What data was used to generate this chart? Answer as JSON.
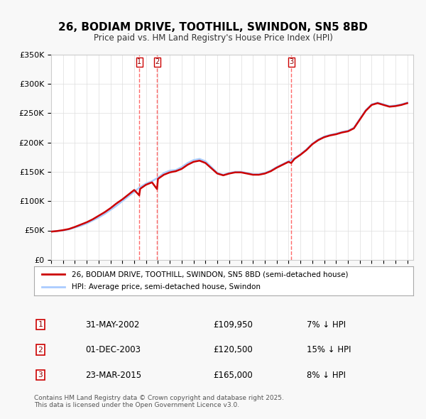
{
  "title": "26, BODIAM DRIVE, TOOTHILL, SWINDON, SN5 8BD",
  "subtitle": "Price paid vs. HM Land Registry's House Price Index (HPI)",
  "legend_line1": "26, BODIAM DRIVE, TOOTHILL, SWINDON, SN5 8BD (semi-detached house)",
  "legend_line2": "HPI: Average price, semi-detached house, Swindon",
  "footer": "Contains HM Land Registry data © Crown copyright and database right 2025.\nThis data is licensed under the Open Government Licence v3.0.",
  "transactions": [
    {
      "num": 1,
      "date": "31-MAY-2002",
      "price": "£109,950",
      "diff": "7% ↓ HPI",
      "year": 2002.42
    },
    {
      "num": 2,
      "date": "01-DEC-2003",
      "price": "£120,500",
      "diff": "15% ↓ HPI",
      "year": 2003.92
    },
    {
      "num": 3,
      "date": "23-MAR-2015",
      "price": "£165,000",
      "diff": "8% ↓ HPI",
      "year": 2015.22
    }
  ],
  "hpi_x": [
    1995,
    1995.5,
    1996,
    1996.5,
    1997,
    1997.5,
    1998,
    1998.5,
    1999,
    1999.5,
    2000,
    2000.5,
    2001,
    2001.5,
    2002,
    2002.5,
    2003,
    2003.5,
    2004,
    2004.5,
    2005,
    2005.5,
    2006,
    2006.5,
    2007,
    2007.5,
    2008,
    2008.5,
    2009,
    2009.5,
    2010,
    2010.5,
    2011,
    2011.5,
    2012,
    2012.5,
    2013,
    2013.5,
    2014,
    2014.5,
    2015,
    2015.5,
    2016,
    2016.5,
    2017,
    2017.5,
    2018,
    2018.5,
    2019,
    2019.5,
    2020,
    2020.5,
    2021,
    2021.5,
    2022,
    2022.5,
    2023,
    2023.5,
    2024,
    2024.5,
    2025
  ],
  "hpi_y": [
    48000,
    49000,
    50000,
    52000,
    55000,
    58000,
    62000,
    67000,
    72000,
    78000,
    85000,
    92000,
    100000,
    108000,
    116000,
    124000,
    130000,
    134000,
    140000,
    148000,
    152000,
    153000,
    158000,
    165000,
    170000,
    172000,
    168000,
    158000,
    148000,
    145000,
    148000,
    150000,
    150000,
    148000,
    146000,
    146000,
    148000,
    152000,
    158000,
    163000,
    168000,
    173000,
    180000,
    188000,
    198000,
    205000,
    210000,
    213000,
    215000,
    218000,
    220000,
    225000,
    240000,
    255000,
    265000,
    268000,
    265000,
    262000,
    263000,
    265000,
    268000
  ],
  "price_x": [
    1995,
    1995.5,
    1996,
    1996.5,
    1997,
    1997.5,
    1998,
    1998.5,
    1999,
    1999.5,
    2000,
    2000.5,
    2001,
    2001.5,
    2002,
    2002.42,
    2002.5,
    2003,
    2003.5,
    2003.92,
    2004,
    2004.5,
    2005,
    2005.5,
    2006,
    2006.5,
    2007,
    2007.5,
    2008,
    2008.5,
    2009,
    2009.5,
    2010,
    2010.5,
    2011,
    2011.5,
    2012,
    2012.5,
    2013,
    2013.5,
    2014,
    2014.5,
    2015,
    2015.22,
    2015.5,
    2016,
    2016.5,
    2017,
    2017.5,
    2018,
    2018.5,
    2019,
    2019.5,
    2020,
    2020.5,
    2021,
    2021.5,
    2022,
    2022.5,
    2023,
    2023.5,
    2024,
    2024.5,
    2025
  ],
  "price_y": [
    48000,
    49000,
    50500,
    52500,
    56000,
    60000,
    64000,
    69000,
    75000,
    81000,
    88000,
    96000,
    103000,
    111000,
    119000,
    109950,
    121000,
    128000,
    132000,
    120500,
    138000,
    145000,
    149000,
    151000,
    155000,
    162000,
    167000,
    169000,
    165000,
    156000,
    147000,
    144000,
    147000,
    149000,
    149000,
    147000,
    145000,
    145000,
    147000,
    151000,
    157000,
    162000,
    167000,
    165000,
    172000,
    179000,
    187000,
    197000,
    204000,
    209000,
    212000,
    214000,
    217000,
    219000,
    224000,
    239000,
    254000,
    264000,
    267000,
    264000,
    261000,
    262000,
    264000,
    267000
  ],
  "ylim": [
    0,
    350000
  ],
  "xlim": [
    1995,
    2025.5
  ],
  "yticks": [
    0,
    50000,
    100000,
    150000,
    200000,
    250000,
    300000,
    350000
  ],
  "ytick_labels": [
    "£0",
    "£50K",
    "£100K",
    "£150K",
    "£200K",
    "£250K",
    "£300K",
    "£350K"
  ],
  "xticks": [
    1995,
    1996,
    1997,
    1998,
    1999,
    2000,
    2001,
    2002,
    2003,
    2004,
    2005,
    2006,
    2007,
    2008,
    2009,
    2010,
    2011,
    2012,
    2013,
    2014,
    2015,
    2016,
    2017,
    2018,
    2019,
    2020,
    2021,
    2022,
    2023,
    2024,
    2025
  ],
  "hpi_color": "#aaccff",
  "price_color": "#cc0000",
  "vline_color": "#ff4444",
  "bg_color": "#f8f8f8",
  "plot_bg": "#ffffff",
  "grid_color": "#dddddd"
}
